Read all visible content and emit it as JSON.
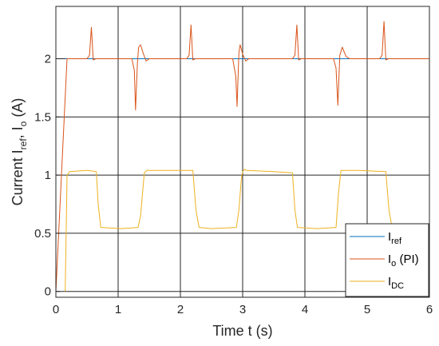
{
  "chart_data": {
    "type": "line",
    "xlabel": "Time t (s)",
    "ylabel": {
      "prefix": "Current I",
      "sub1": "ref",
      "mid": ", I",
      "sub2": "o",
      "suffix": " (A)"
    },
    "xlim": [
      0,
      6
    ],
    "ylim": [
      -0.05,
      2.45
    ],
    "xticks": [
      "0",
      "1",
      "2",
      "3",
      "4",
      "5",
      "6"
    ],
    "yticks": [
      "0",
      "0.5",
      "1",
      "1.5",
      "2"
    ],
    "xtick_values": [
      0,
      1,
      2,
      3,
      4,
      5,
      6
    ],
    "ytick_values": [
      0,
      0.5,
      1,
      1.5,
      2
    ],
    "grid": true,
    "legend_position": "bottom-right",
    "series": [
      {
        "name": {
          "main": "I",
          "sub": "ref",
          "tail": ""
        },
        "color": "#0072BD",
        "x": [
          0.15,
          6.0
        ],
        "y": [
          2.0,
          2.0
        ]
      },
      {
        "name": {
          "main": "I",
          "sub": "o",
          "tail": " (PI)"
        },
        "color": "#D95319",
        "x": [
          0.0,
          0.18,
          0.5,
          0.54,
          0.57,
          0.6,
          0.64,
          1.22,
          1.26,
          1.28,
          1.31,
          1.33,
          1.36,
          1.4,
          1.45,
          1.5,
          2.1,
          2.14,
          2.17,
          2.2,
          2.24,
          2.84,
          2.89,
          2.91,
          2.94,
          2.96,
          3.0,
          3.05,
          3.1,
          3.8,
          3.84,
          3.87,
          3.9,
          3.94,
          4.46,
          4.5,
          4.53,
          4.56,
          4.6,
          4.66,
          4.72,
          5.2,
          5.24,
          5.27,
          5.3,
          5.34,
          6.0
        ],
        "y": [
          0.0,
          2.0,
          2.0,
          2.03,
          2.27,
          1.99,
          2.0,
          2.0,
          1.9,
          1.56,
          1.97,
          2.1,
          2.12,
          2.05,
          1.98,
          2.0,
          2.0,
          2.03,
          2.29,
          1.99,
          2.0,
          2.0,
          1.85,
          1.59,
          2.05,
          2.12,
          2.04,
          1.98,
          2.0,
          2.0,
          2.03,
          2.29,
          1.99,
          2.0,
          2.0,
          1.92,
          1.6,
          2.03,
          2.1,
          2.02,
          2.0,
          2.0,
          2.03,
          2.32,
          1.99,
          2.0,
          2.0
        ]
      },
      {
        "name": {
          "main": "I",
          "sub": "DC",
          "tail": ""
        },
        "color": "#EDB120",
        "x": [
          0.15,
          0.18,
          0.22,
          0.5,
          0.65,
          0.68,
          0.72,
          1.05,
          1.32,
          1.36,
          1.42,
          1.46,
          1.8,
          2.2,
          2.25,
          2.3,
          2.5,
          2.9,
          2.94,
          2.98,
          3.0,
          3.03,
          3.06,
          3.5,
          3.8,
          3.84,
          3.88,
          4.2,
          4.5,
          4.54,
          4.58,
          4.85,
          5.3,
          5.35,
          5.4,
          6.0
        ],
        "y": [
          0.0,
          1.0,
          1.03,
          1.04,
          1.03,
          0.75,
          0.55,
          0.54,
          0.55,
          0.65,
          1.02,
          1.04,
          1.04,
          1.04,
          0.7,
          0.55,
          0.54,
          0.55,
          0.7,
          0.97,
          1.03,
          1.05,
          1.04,
          1.03,
          1.02,
          0.7,
          0.55,
          0.54,
          0.55,
          0.85,
          1.04,
          1.04,
          1.03,
          0.7,
          0.55,
          0.55
        ]
      }
    ]
  }
}
